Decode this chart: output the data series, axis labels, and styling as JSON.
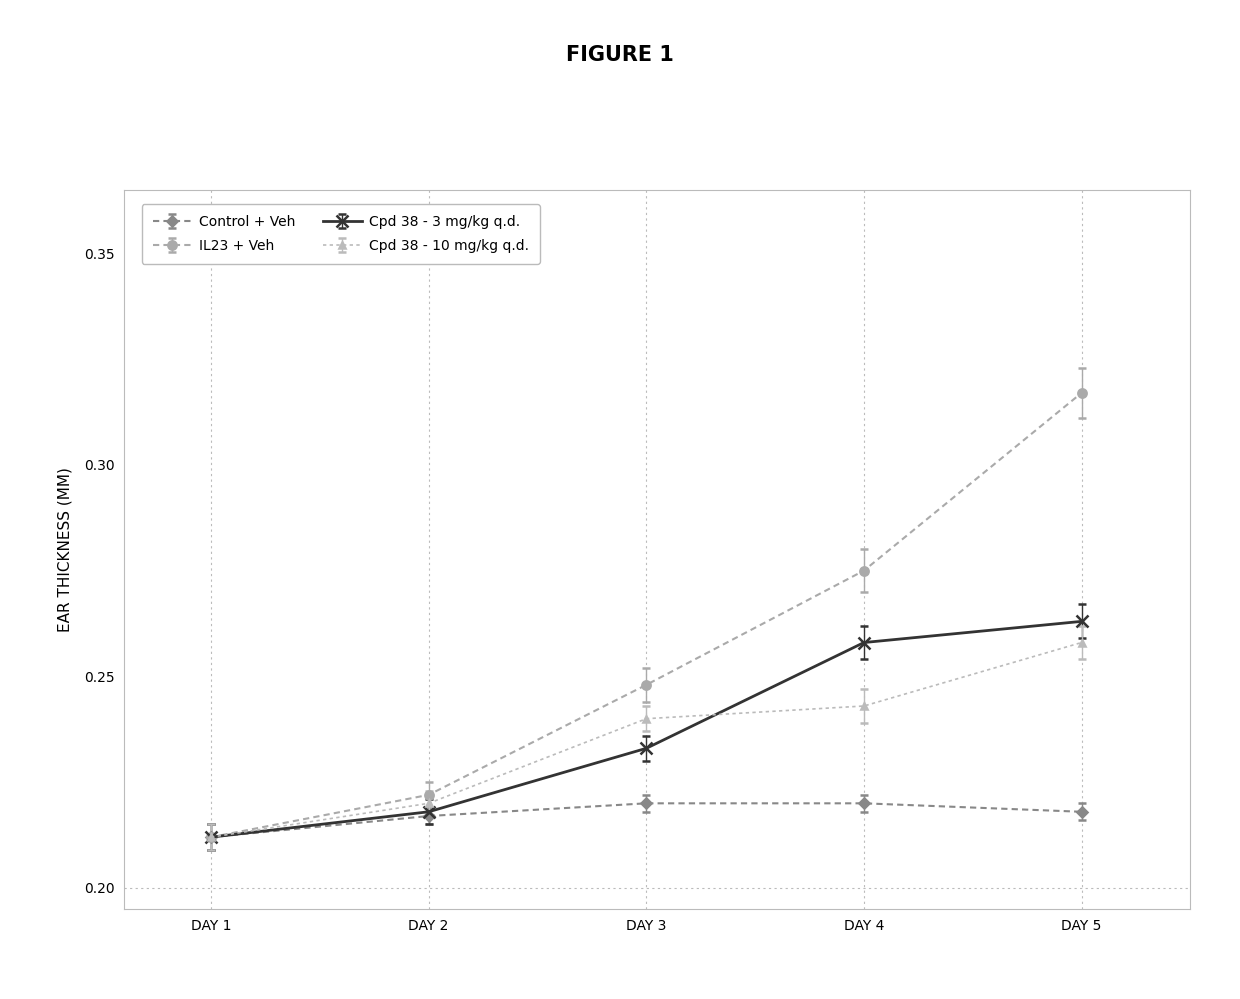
{
  "title": "FIGURE 1",
  "xlabel_days": [
    "DAY 1",
    "DAY 2",
    "DAY 3",
    "DAY 4",
    "DAY 5"
  ],
  "x_values": [
    1,
    2,
    3,
    4,
    5
  ],
  "ylabel": "EAR THICKNESS (MM)",
  "ylim": [
    0.195,
    0.365
  ],
  "yticks": [
    0.2,
    0.25,
    0.3,
    0.35
  ],
  "series": [
    {
      "label": "Control + Veh",
      "values": [
        0.212,
        0.217,
        0.22,
        0.22,
        0.218
      ],
      "errors": [
        0.003,
        0.002,
        0.002,
        0.002,
        0.002
      ],
      "color": "#888888",
      "linestyle": "dashed",
      "marker": "D",
      "markersize": 5,
      "linewidth": 1.5,
      "dashes": [
        3,
        2
      ]
    },
    {
      "label": "IL23 + Veh",
      "values": [
        0.212,
        0.222,
        0.248,
        0.275,
        0.317
      ],
      "errors": [
        0.003,
        0.003,
        0.004,
        0.005,
        0.006
      ],
      "color": "#aaaaaa",
      "linestyle": "dashed",
      "marker": "o",
      "markersize": 6,
      "linewidth": 1.5,
      "dashes": [
        3,
        2
      ]
    },
    {
      "label": "Cpd 38 - 3 mg/kg q.d.",
      "values": [
        0.212,
        0.218,
        0.233,
        0.258,
        0.263
      ],
      "errors": [
        0.003,
        0.003,
        0.003,
        0.004,
        0.004
      ],
      "color": "#333333",
      "linestyle": "solid",
      "marker": "x",
      "markersize": 9,
      "linewidth": 2.0,
      "dashes": []
    },
    {
      "label": "Cpd 38 - 10 mg/kg q.d.",
      "values": [
        0.212,
        0.22,
        0.24,
        0.243,
        0.258
      ],
      "errors": [
        0.003,
        0.003,
        0.003,
        0.004,
        0.004
      ],
      "color": "#bbbbbb",
      "linestyle": "dashed",
      "marker": "^",
      "markersize": 5,
      "linewidth": 1.2,
      "dashes": [
        2,
        2
      ]
    }
  ],
  "background_color": "#ffffff",
  "grid_color": "#bbbbbb",
  "title_fontsize": 15,
  "axis_label_fontsize": 11,
  "tick_fontsize": 10,
  "legend_fontsize": 10
}
